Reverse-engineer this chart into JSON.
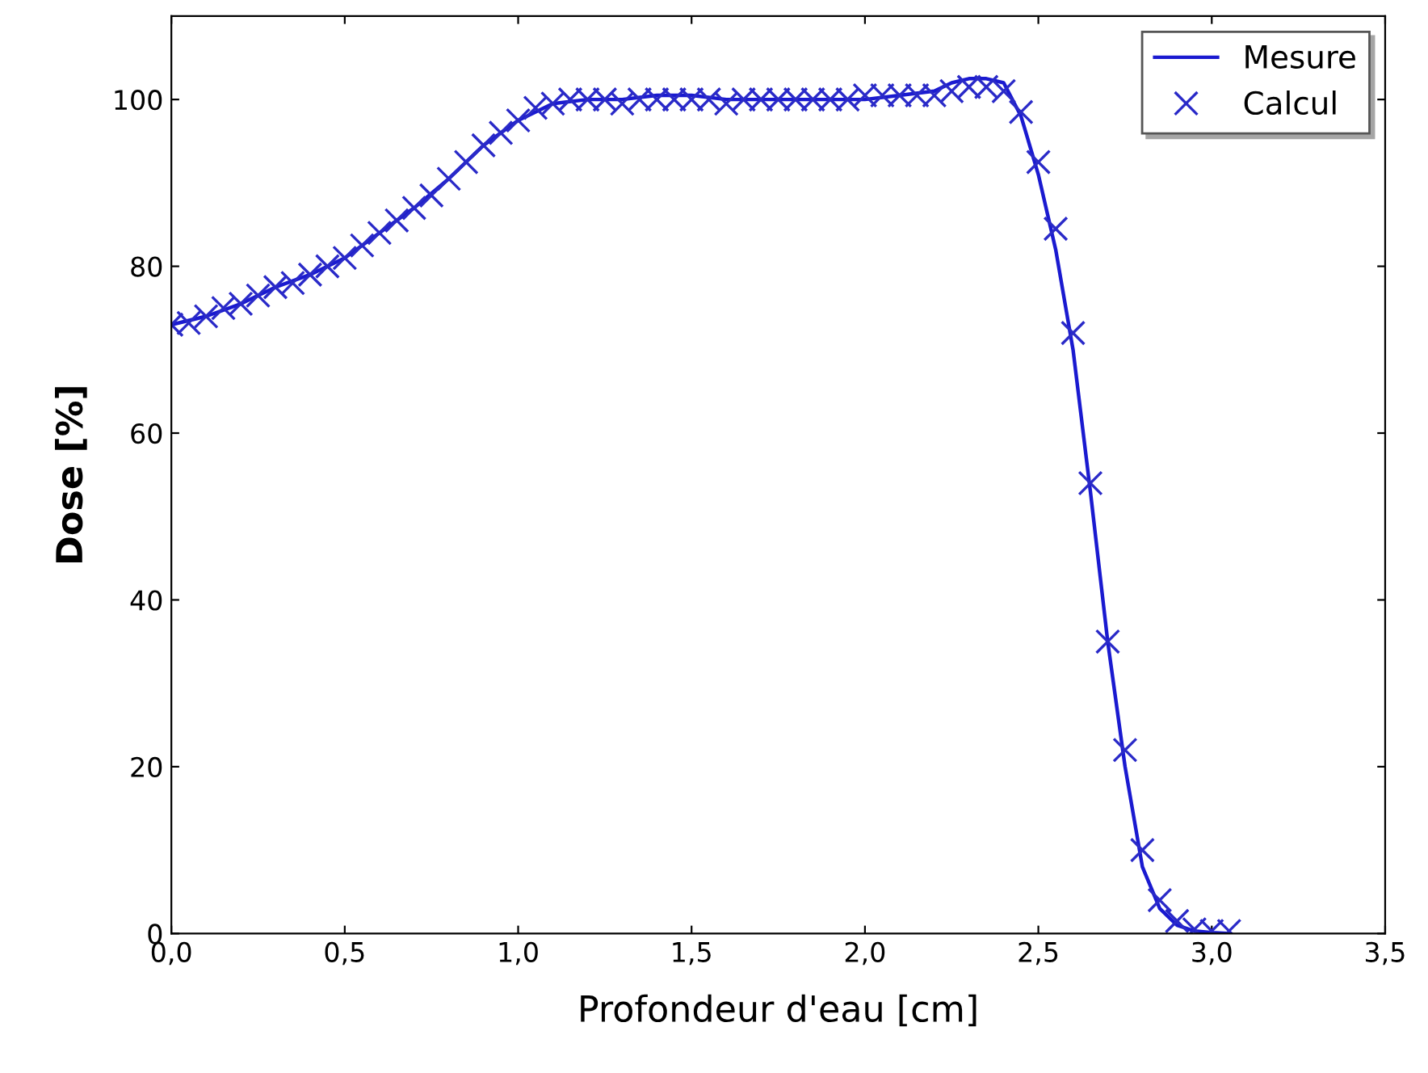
{
  "chart_data": {
    "type": "line",
    "xlabel": "Profondeur d'eau [cm]",
    "ylabel": "Dose [%]",
    "xlim": [
      0,
      3.5
    ],
    "ylim": [
      0,
      110
    ],
    "xticks": [
      {
        "value": 0,
        "label": "0,0"
      },
      {
        "value": 0.5,
        "label": "0,5"
      },
      {
        "value": 1,
        "label": "1,0"
      },
      {
        "value": 1.5,
        "label": "1,5"
      },
      {
        "value": 2,
        "label": "2,0"
      },
      {
        "value": 2.5,
        "label": "2,5"
      },
      {
        "value": 3,
        "label": "3,0"
      },
      {
        "value": 3.5,
        "label": "3,5"
      }
    ],
    "yticks": [
      0,
      20,
      40,
      60,
      80,
      100
    ],
    "grid": false,
    "legend": "top right",
    "series": [
      {
        "name": "Mesure",
        "color": "#1a1ad0",
        "marker": "none",
        "line_style": "solid",
        "x": [
          0,
          0.1,
          0.2,
          0.3,
          0.4,
          0.5,
          0.6,
          0.7,
          0.8,
          0.9,
          1.0,
          1.1,
          1.2,
          1.3,
          1.4,
          1.5,
          1.6,
          1.7,
          1.8,
          1.9,
          2.0,
          2.1,
          2.2,
          2.25,
          2.3,
          2.35,
          2.4,
          2.45,
          2.5,
          2.55,
          2.6,
          2.65,
          2.7,
          2.75,
          2.8,
          2.85,
          2.9,
          2.95,
          3.0,
          3.05
        ],
        "values": [
          73,
          74,
          75.5,
          77.5,
          79,
          81,
          84,
          87,
          90.5,
          94.5,
          97.5,
          99.5,
          100,
          100,
          100.5,
          100.5,
          100,
          100,
          100,
          100,
          100,
          100.5,
          101,
          102,
          102.5,
          102.5,
          102,
          98,
          91,
          82,
          70,
          53,
          35,
          20,
          8,
          3,
          1,
          0.3,
          0.1,
          0
        ]
      },
      {
        "name": "Calcul",
        "type": "scatter",
        "color": "#2a2ac8",
        "marker": "cross",
        "x": [
          0,
          0.05,
          0.1,
          0.15,
          0.2,
          0.25,
          0.3,
          0.35,
          0.4,
          0.45,
          0.5,
          0.55,
          0.6,
          0.65,
          0.7,
          0.75,
          0.8,
          0.85,
          0.9,
          0.95,
          1.0,
          1.05,
          1.1,
          1.15,
          1.2,
          1.25,
          1.3,
          1.35,
          1.4,
          1.45,
          1.5,
          1.55,
          1.6,
          1.65,
          1.7,
          1.75,
          1.8,
          1.85,
          1.9,
          1.95,
          2.0,
          2.05,
          2.1,
          2.15,
          2.2,
          2.25,
          2.3,
          2.35,
          2.4,
          2.45,
          2.5,
          2.55,
          2.6,
          2.65,
          2.7,
          2.75,
          2.8,
          2.85,
          2.9,
          2.95,
          3.0,
          3.05
        ],
        "values": [
          73,
          73.2,
          74,
          75,
          75.5,
          76.5,
          77.5,
          78,
          79,
          80,
          81,
          82.5,
          84,
          85.5,
          87,
          88.5,
          90.5,
          92.5,
          94.5,
          96,
          97.5,
          99,
          99.5,
          100,
          100,
          100,
          99.5,
          100,
          100,
          100,
          100,
          100,
          99.5,
          100,
          100,
          100,
          100,
          100,
          100,
          100,
          100.5,
          100.5,
          100.5,
          100.5,
          100.5,
          101,
          101.5,
          101.5,
          101,
          98.5,
          92.5,
          84.5,
          72,
          54,
          35,
          22,
          10,
          4,
          1.5,
          0.5,
          0.3,
          0.3
        ]
      }
    ]
  }
}
